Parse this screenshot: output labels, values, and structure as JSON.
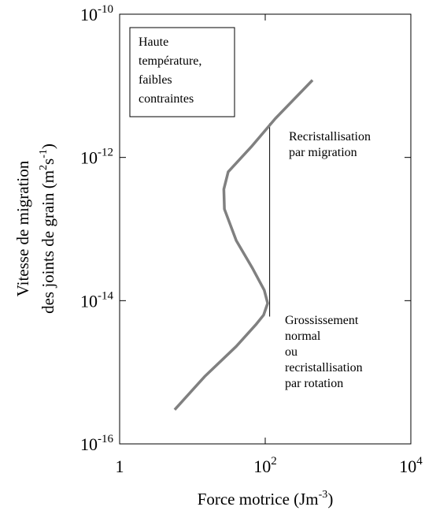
{
  "chart_data": {
    "type": "line",
    "xscale": "log",
    "yscale": "log",
    "xlim": [
      1,
      10000
    ],
    "ylim": [
      1e-16,
      1e-10
    ],
    "xticks": [
      {
        "value": 1,
        "label": "1"
      },
      {
        "value": 100,
        "label": "10",
        "superscript": "2"
      },
      {
        "value": 10000,
        "label": "10",
        "superscript": "4"
      }
    ],
    "yticks": [
      {
        "value": 1e-16,
        "label": "10",
        "superscript": "-16"
      },
      {
        "value": 1e-14,
        "label": "10",
        "superscript": "-14"
      },
      {
        "value": 1e-12,
        "label": "10",
        "superscript": "-12"
      },
      {
        "value": 1e-10,
        "label": "10",
        "superscript": "-10"
      }
    ],
    "xlabel": [
      {
        "text": "Force motrice (Jm"
      },
      {
        "text": "-3",
        "sup": true
      },
      {
        "text": ")"
      }
    ],
    "ylabel": [
      [
        {
          "text": "Vitesse de migration"
        }
      ],
      [
        {
          "text": "des joints de grain (m"
        },
        {
          "text": "2",
          "sup": true
        },
        {
          "text": "s"
        },
        {
          "text": "-1",
          "sup": true
        },
        {
          "text": ")"
        }
      ]
    ],
    "series": [
      {
        "color": "#808080",
        "x": [
          5.7,
          14.7,
          40,
          74,
          95,
          108,
          97,
          66,
          40,
          27.5,
          27,
          31,
          66,
          138,
          446
        ],
        "values": [
          3e-16,
          8.7e-16,
          2.3e-15,
          4.6e-15,
          6.3e-15,
          9.2e-15,
          1.4e-14,
          2.9e-14,
          6.9e-14,
          1.9e-13,
          3.6e-13,
          6.3e-13,
          1.45e-12,
          3.5e-12,
          1.2e-11
        ]
      }
    ],
    "vline": {
      "x": 115,
      "y": [
        3e-12,
        6e-15
      ],
      "color": "#000000"
    },
    "box_text": [
      "Haute",
      "température,",
      "faibles",
      "contraintes"
    ],
    "annotations": [
      [
        "Recristallisation",
        "par migration"
      ],
      [
        "Grossissement",
        "normal",
        "ou",
        "recristallisation",
        "par rotation"
      ]
    ]
  }
}
